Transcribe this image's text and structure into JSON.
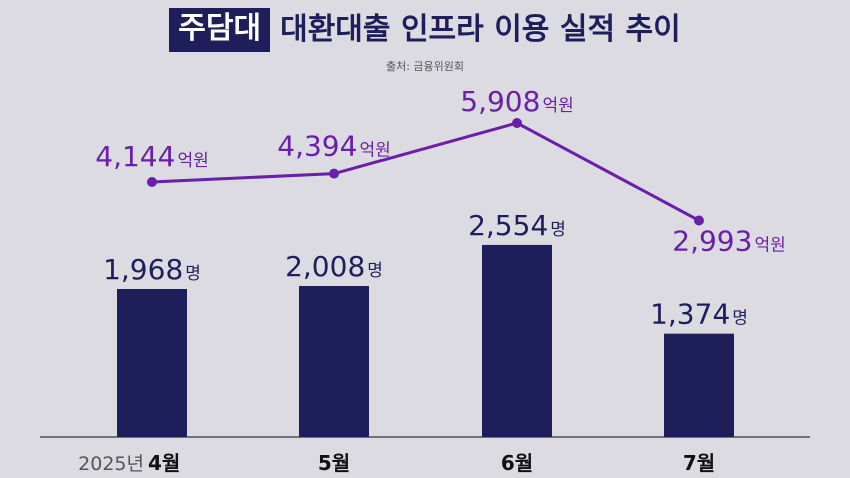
{
  "header": {
    "badge": "주담대",
    "title": "대환대출 인프라 이용 실적 추이",
    "source": "출처: 금융위원회"
  },
  "colors": {
    "bar": "#1e1e5a",
    "line": "#6a1fa8",
    "background": "#dcdbe2"
  },
  "chart_data": {
    "type": "bar",
    "categories": [
      "4월",
      "5월",
      "6월",
      "7월"
    ],
    "x_prefix": "2025년",
    "bar_unit": "명",
    "line_unit": "억원",
    "series": [
      {
        "type": "bar",
        "values": [
          1968,
          2008,
          2554,
          1374
        ],
        "labels": [
          "1,968",
          "2,008",
          "2,554",
          "1,374"
        ]
      },
      {
        "type": "line",
        "values": [
          4144,
          4394,
          5908,
          2993
        ],
        "labels": [
          "4,144",
          "4,394",
          "5,908",
          "2,993"
        ]
      }
    ],
    "grid": false,
    "legend": "none"
  }
}
